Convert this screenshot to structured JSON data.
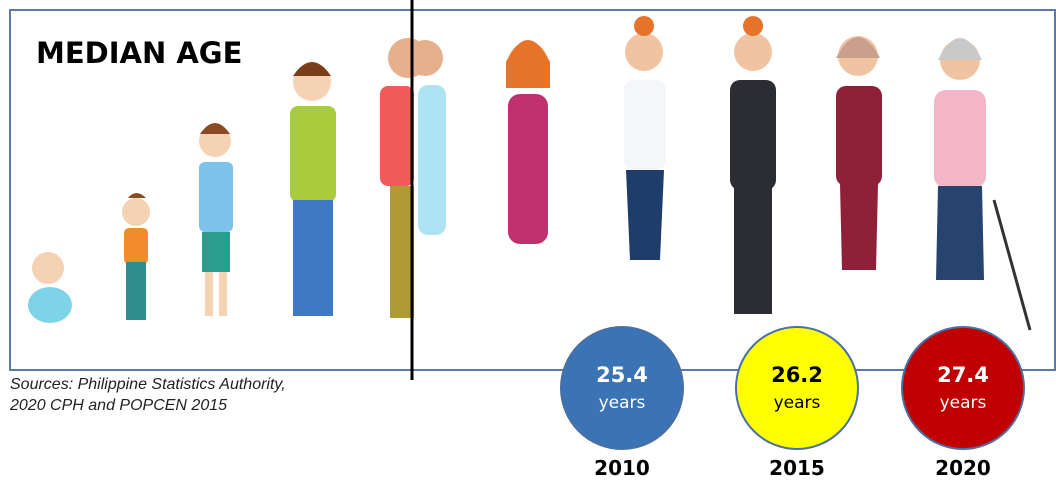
{
  "heading": "MEDIAN AGE",
  "sources": [
    "Sources: Philippine Statistics Authority,",
    "2020 CPH and POPCEN 2015"
  ],
  "circles": [
    {
      "value": "25.4",
      "unit": "years",
      "year": "2010"
    },
    {
      "value": "26.2",
      "unit": "years",
      "year": "2015"
    },
    {
      "value": "27.4",
      "unit": "years",
      "year": "2020"
    }
  ]
}
